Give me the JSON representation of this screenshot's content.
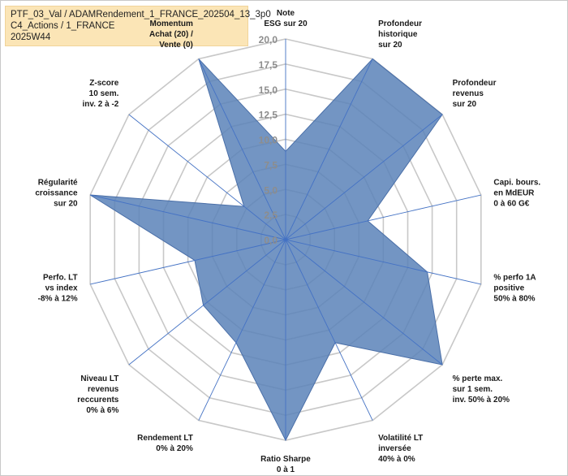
{
  "header": {
    "line1": "PTF_03_Val / ADAMRendement_1_FRANCE_202504_13_3p0",
    "line2": "C4_Actions / 1_FRANCE",
    "line3": "2025W44"
  },
  "chart_data": {
    "type": "radar",
    "rlim": [
      0,
      20
    ],
    "ticks": [
      "0,0",
      "2,5",
      "5,0",
      "7,5",
      "10,0",
      "12,5",
      "15,0",
      "17,5",
      "20,0"
    ],
    "axes": [
      {
        "lines": [
          "Note",
          "ESG sur 20"
        ]
      },
      {
        "lines": [
          "Profondeur",
          "historique",
          "sur 20"
        ]
      },
      {
        "lines": [
          "Profondeur",
          "revenus",
          "sur 20"
        ]
      },
      {
        "lines": [
          "Capi. bours.",
          "en MdEUR",
          "0 à 60 G€"
        ]
      },
      {
        "lines": [
          "% perfo 1A",
          "positive",
          "50% à 80%"
        ]
      },
      {
        "lines": [
          "% perte max.",
          "sur 1 sem.",
          "inv. 50% à 20%"
        ]
      },
      {
        "lines": [
          "Volatilité LT",
          "inversée",
          "40% à 0%"
        ]
      },
      {
        "lines": [
          "Ratio Sharpe",
          "0 à 1"
        ]
      },
      {
        "lines": [
          "Rendement LT",
          "0% à 20%"
        ]
      },
      {
        "lines": [
          "Niveau LT",
          "revenus",
          "reccurents",
          "0% à 6%"
        ]
      },
      {
        "lines": [
          "Perfo. LT",
          "vs index",
          "-8% à 12%"
        ]
      },
      {
        "lines": [
          "Régularité",
          "croissance",
          "sur 20"
        ]
      },
      {
        "lines": [
          "Z-score",
          "10 sem.",
          "inv. 2 à -2"
        ]
      },
      {
        "lines": [
          "Momentum",
          "Achat (20) /",
          "Vente (0)"
        ]
      }
    ],
    "series": [
      {
        "values": [
          8.8,
          20,
          20,
          8.4,
          14.5,
          20,
          11.4,
          20,
          11.4,
          10.5,
          9.3,
          20,
          5.3,
          20
        ]
      }
    ],
    "colors": {
      "fill": "#5b82b8",
      "stroke": "#4a6fa8",
      "grid": "#c8c8c8",
      "spoke": "#4472c4"
    }
  }
}
